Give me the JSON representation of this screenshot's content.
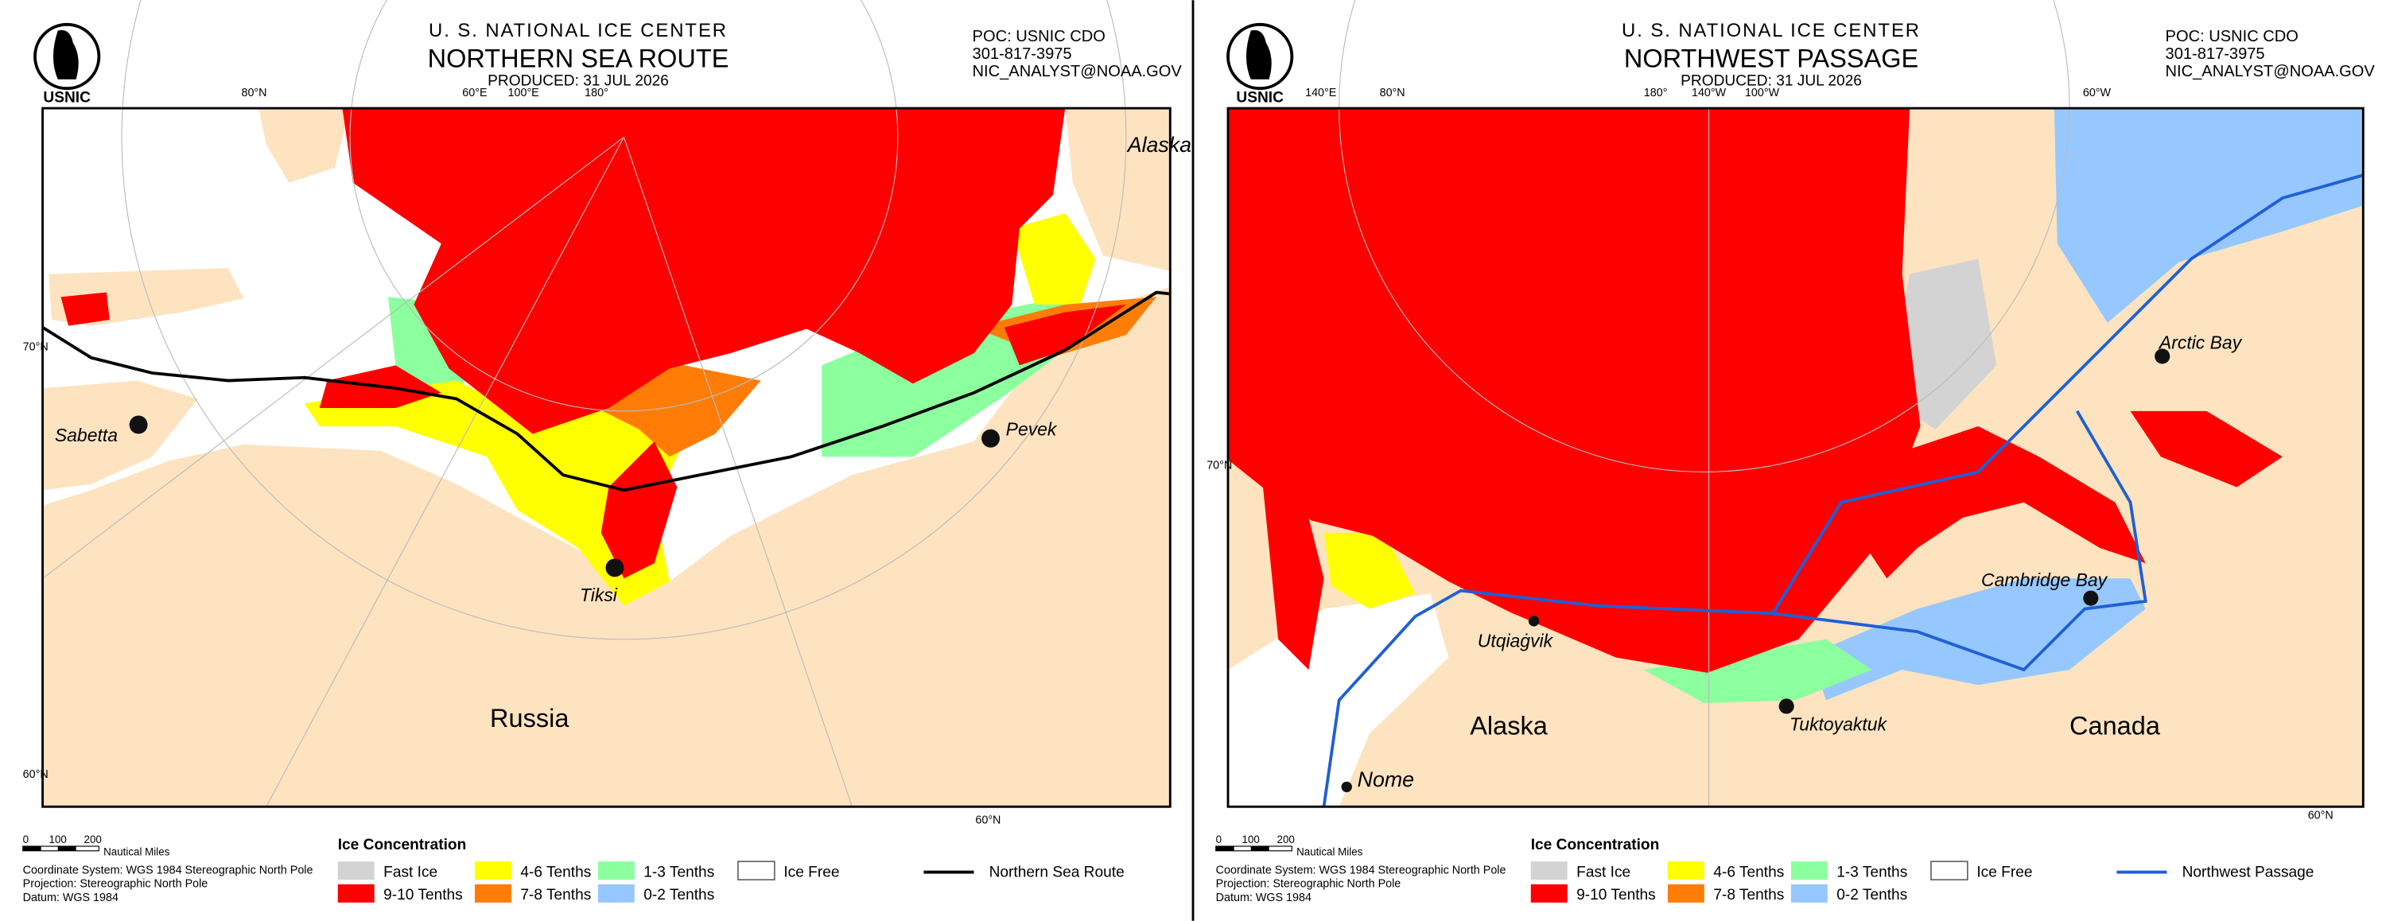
{
  "panels": [
    {
      "logo": "USNIC",
      "header": {
        "org": "U. S. NATIONAL ICE CENTER",
        "title": "NORTHERN SEA ROUTE",
        "produced": "PRODUCED:  31 JUL 2026"
      },
      "contact": [
        "POC: USNIC CDO",
        "301-817-3975",
        "NIC_ANALYST@NOAA.GOV"
      ],
      "graticule": [
        "80°N",
        "60°E",
        "100°E",
        "180°",
        "70°N",
        "60°N",
        "60°N"
      ],
      "places": [
        "Alaska",
        "Sabetta",
        "Pevek",
        "Tiksi",
        "Russia"
      ],
      "scale": {
        "ticks": [
          "0",
          "100",
          "200"
        ],
        "unit": "Nautical Miles"
      },
      "notes": [
        "Coordinate System: WGS 1984 Stereographic North Pole",
        "Projection: Stereographic North Pole",
        "Datum: WGS 1984"
      ],
      "legend": {
        "title": "Ice Concentration",
        "items": [
          {
            "label": "Fast Ice",
            "color": "#d3d3d3"
          },
          {
            "label": "9-10 Tenths",
            "color": "#ff0000"
          },
          {
            "label": "4-6 Tenths",
            "color": "#ffff00"
          },
          {
            "label": "7-8 Tenths",
            "color": "#ff7d07"
          },
          {
            "label": "1-3 Tenths",
            "color": "#8cff9f"
          },
          {
            "label": "0-2 Tenths",
            "color": "#96c8ff"
          },
          {
            "label": "Ice Free",
            "color": "#ffffff"
          }
        ]
      },
      "route": {
        "label": "Northern Sea Route",
        "color": "#000000"
      }
    },
    {
      "logo": "USNIC",
      "header": {
        "org": "U. S. NATIONAL ICE CENTER",
        "title": "NORTHWEST PASSAGE",
        "produced": "PRODUCED:  31 JUL 2026"
      },
      "contact": [
        "POC: USNIC CDO",
        "301-817-3975",
        "NIC_ANALYST@NOAA.GOV"
      ],
      "graticule": [
        "140°E",
        "80°N",
        "180°",
        "140°W",
        "100°W",
        "60°W",
        "70°N",
        "60°N"
      ],
      "places": [
        "Arctic Bay",
        "Cambridge Bay",
        "Utqiaġvik",
        "Tuktoyaktuk",
        "Nome",
        "Alaska",
        "Canada"
      ],
      "scale": {
        "ticks": [
          "0",
          "100",
          "200"
        ],
        "unit": "Nautical Miles"
      },
      "notes": [
        "Coordinate System: WGS 1984 Stereographic North Pole",
        "Projection: Stereographic North Pole",
        "Datum: WGS 1984"
      ],
      "legend": {
        "title": "Ice Concentration",
        "items": [
          {
            "label": "Fast Ice",
            "color": "#d3d3d3"
          },
          {
            "label": "9-10 Tenths",
            "color": "#ff0000"
          },
          {
            "label": "4-6 Tenths",
            "color": "#ffff00"
          },
          {
            "label": "7-8 Tenths",
            "color": "#ff7d07"
          },
          {
            "label": "1-3 Tenths",
            "color": "#8cff9f"
          },
          {
            "label": "0-2 Tenths",
            "color": "#96c8ff"
          },
          {
            "label": "Ice Free",
            "color": "#ffffff"
          }
        ]
      },
      "route": {
        "label": "Northwest Passage",
        "color": "#1f5fd6"
      }
    }
  ]
}
